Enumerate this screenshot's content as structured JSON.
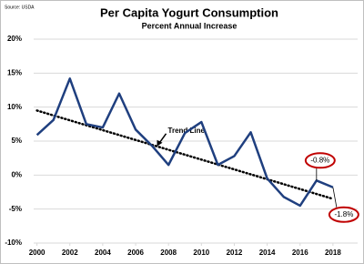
{
  "chart_data": {
    "type": "line",
    "title": "Per Capita Yogurt Consumption",
    "subtitle": "Percent Annual Increase",
    "source": "Source: USDA",
    "x": [
      2000,
      2001,
      2002,
      2003,
      2004,
      2005,
      2006,
      2007,
      2008,
      2009,
      2010,
      2011,
      2012,
      2013,
      2014,
      2015,
      2016,
      2017,
      2018
    ],
    "series": [
      {
        "color": "#1f3f7f",
        "values": [
          5.9,
          8.1,
          14.2,
          7.5,
          7.0,
          12.0,
          6.7,
          4.3,
          1.5,
          6.2,
          7.8,
          1.5,
          2.8,
          6.3,
          -0.5,
          -3.2,
          -4.5,
          -0.8,
          -1.8
        ],
        "value_labels": [
          null,
          null,
          null,
          null,
          null,
          null,
          null,
          null,
          null,
          null,
          null,
          null,
          null,
          null,
          null,
          null,
          null,
          "-0.8%",
          "-1.8%"
        ]
      }
    ],
    "trend": {
      "name": "Trend Line",
      "color": "#000000",
      "x": [
        2000,
        2018
      ],
      "values": [
        9.5,
        -3.5
      ]
    },
    "xlim": [
      1999.8,
      2019.5
    ],
    "xticks": [
      2000,
      2002,
      2004,
      2006,
      2008,
      2010,
      2012,
      2014,
      2016,
      2018
    ],
    "ylim": [
      -10,
      20
    ],
    "yticks": [
      {
        "value": -10,
        "label": "-10%"
      },
      {
        "value": -5,
        "label": "-5%"
      },
      {
        "value": 0,
        "label": "0%"
      },
      {
        "value": 5,
        "label": "5%"
      },
      {
        "value": 10,
        "label": "10%"
      },
      {
        "value": 15,
        "label": "15%"
      },
      {
        "value": 20,
        "label": "20%"
      }
    ],
    "grid": true,
    "label_color": "#c00000"
  }
}
